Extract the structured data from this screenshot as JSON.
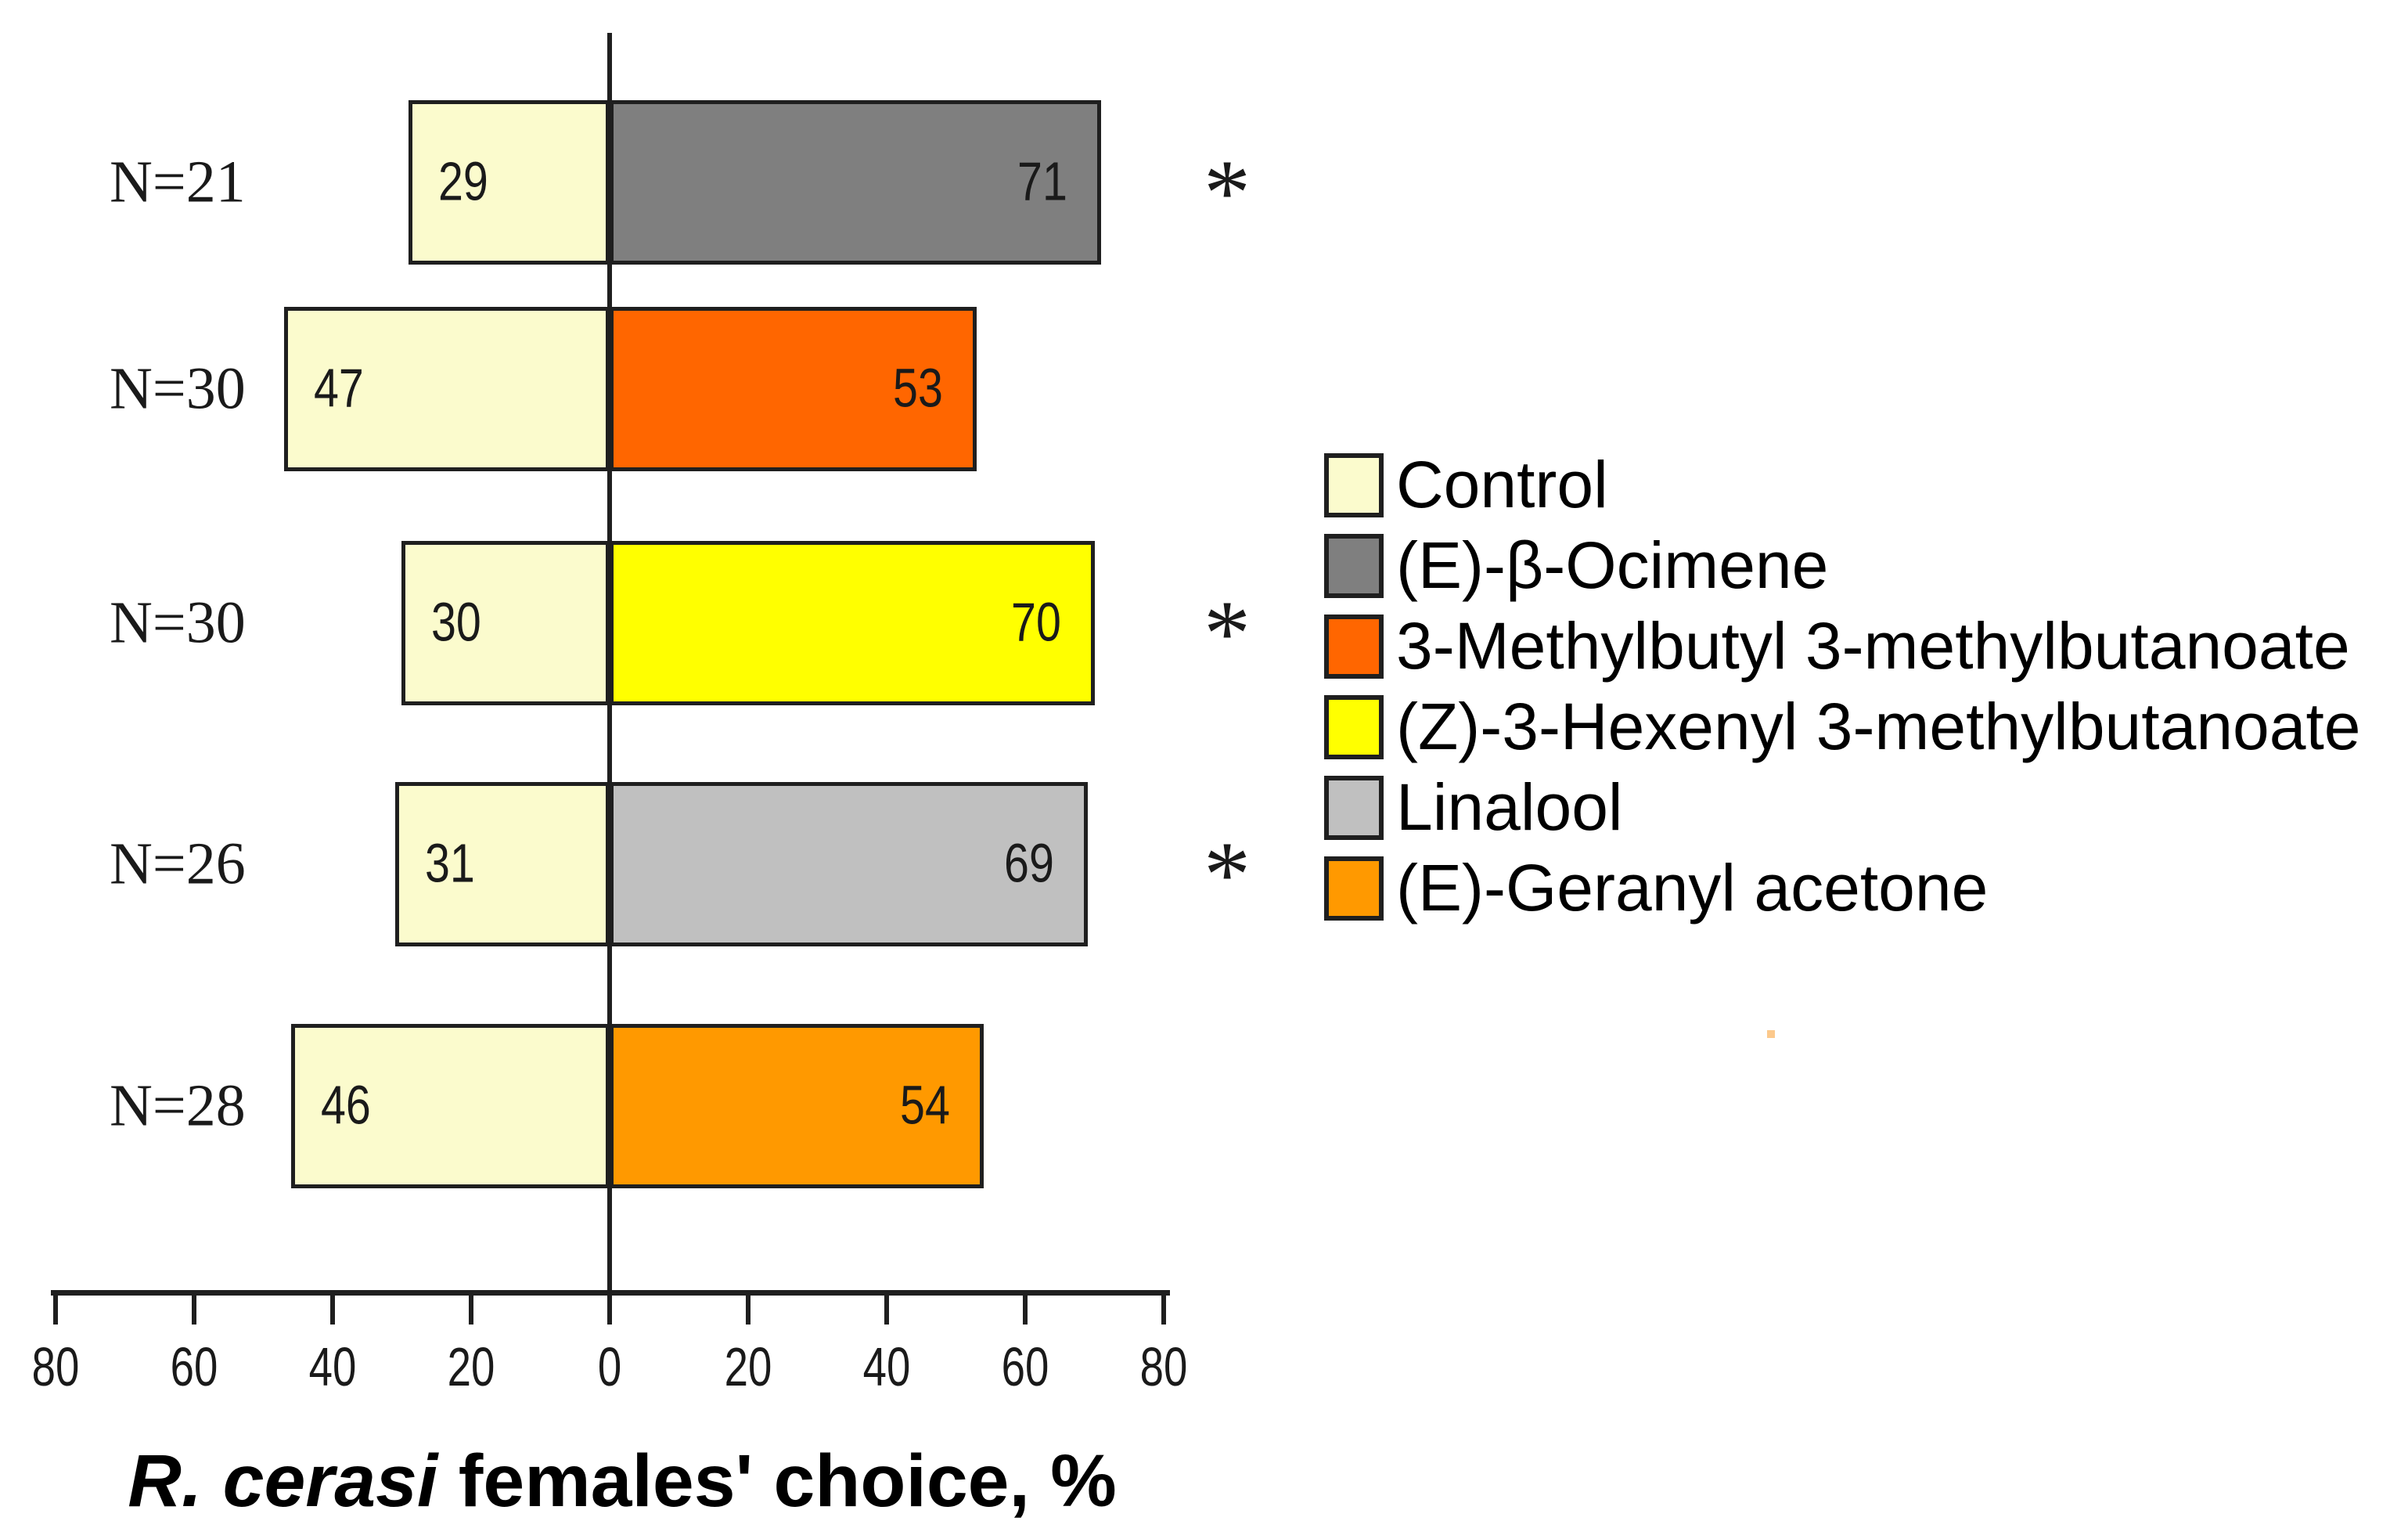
{
  "chart_data": {
    "type": "bar",
    "variant": "diverging-horizontal-paired",
    "xlabel_italic": "R. cerasi",
    "xlabel_rest": " females' choice, %",
    "axis_ticks": [
      80,
      60,
      40,
      20,
      0,
      20,
      40,
      60,
      80
    ],
    "axis_abs_max": 80,
    "control_color": "#fbfbcd",
    "significance_marker": "*",
    "rows": [
      {
        "n_label": "N=21",
        "control_value": 29,
        "treatment_value": 71,
        "treatment_name": "(E)-β-Ocimene",
        "treatment_color": "#7f7f7f",
        "significant": true
      },
      {
        "n_label": "N=30",
        "control_value": 47,
        "treatment_value": 53,
        "treatment_name": "3-Methylbutyl 3-methylbutanoate",
        "treatment_color": "#ff6600",
        "significant": false
      },
      {
        "n_label": "N=30",
        "control_value": 30,
        "treatment_value": 70,
        "treatment_name": "(Z)-3-Hexenyl 3-methylbutanoate",
        "treatment_color": "#ffff00",
        "significant": true
      },
      {
        "n_label": "N=26",
        "control_value": 31,
        "treatment_value": 69,
        "treatment_name": "Linalool",
        "treatment_color": "#c0c0c0",
        "significant": true
      },
      {
        "n_label": "N=28",
        "control_value": 46,
        "treatment_value": 54,
        "treatment_name": "(E)-Geranyl acetone",
        "treatment_color": "#ff9900",
        "significant": false
      }
    ],
    "legend": [
      {
        "label": "Control",
        "color": "#fbfbcd"
      },
      {
        "label": "(E)-β-Ocimene",
        "color": "#7f7f7f"
      },
      {
        "label": "3-Methylbutyl 3-methylbutanoate",
        "color": "#ff6600"
      },
      {
        "label": "(Z)-3-Hexenyl 3-methylbutanoate",
        "color": "#ffff00"
      },
      {
        "label": "Linalool",
        "color": "#c0c0c0"
      },
      {
        "label": "(E)-Geranyl acetone",
        "color": "#ff9900"
      }
    ],
    "artifact_dot_color": "#fcc98c"
  }
}
